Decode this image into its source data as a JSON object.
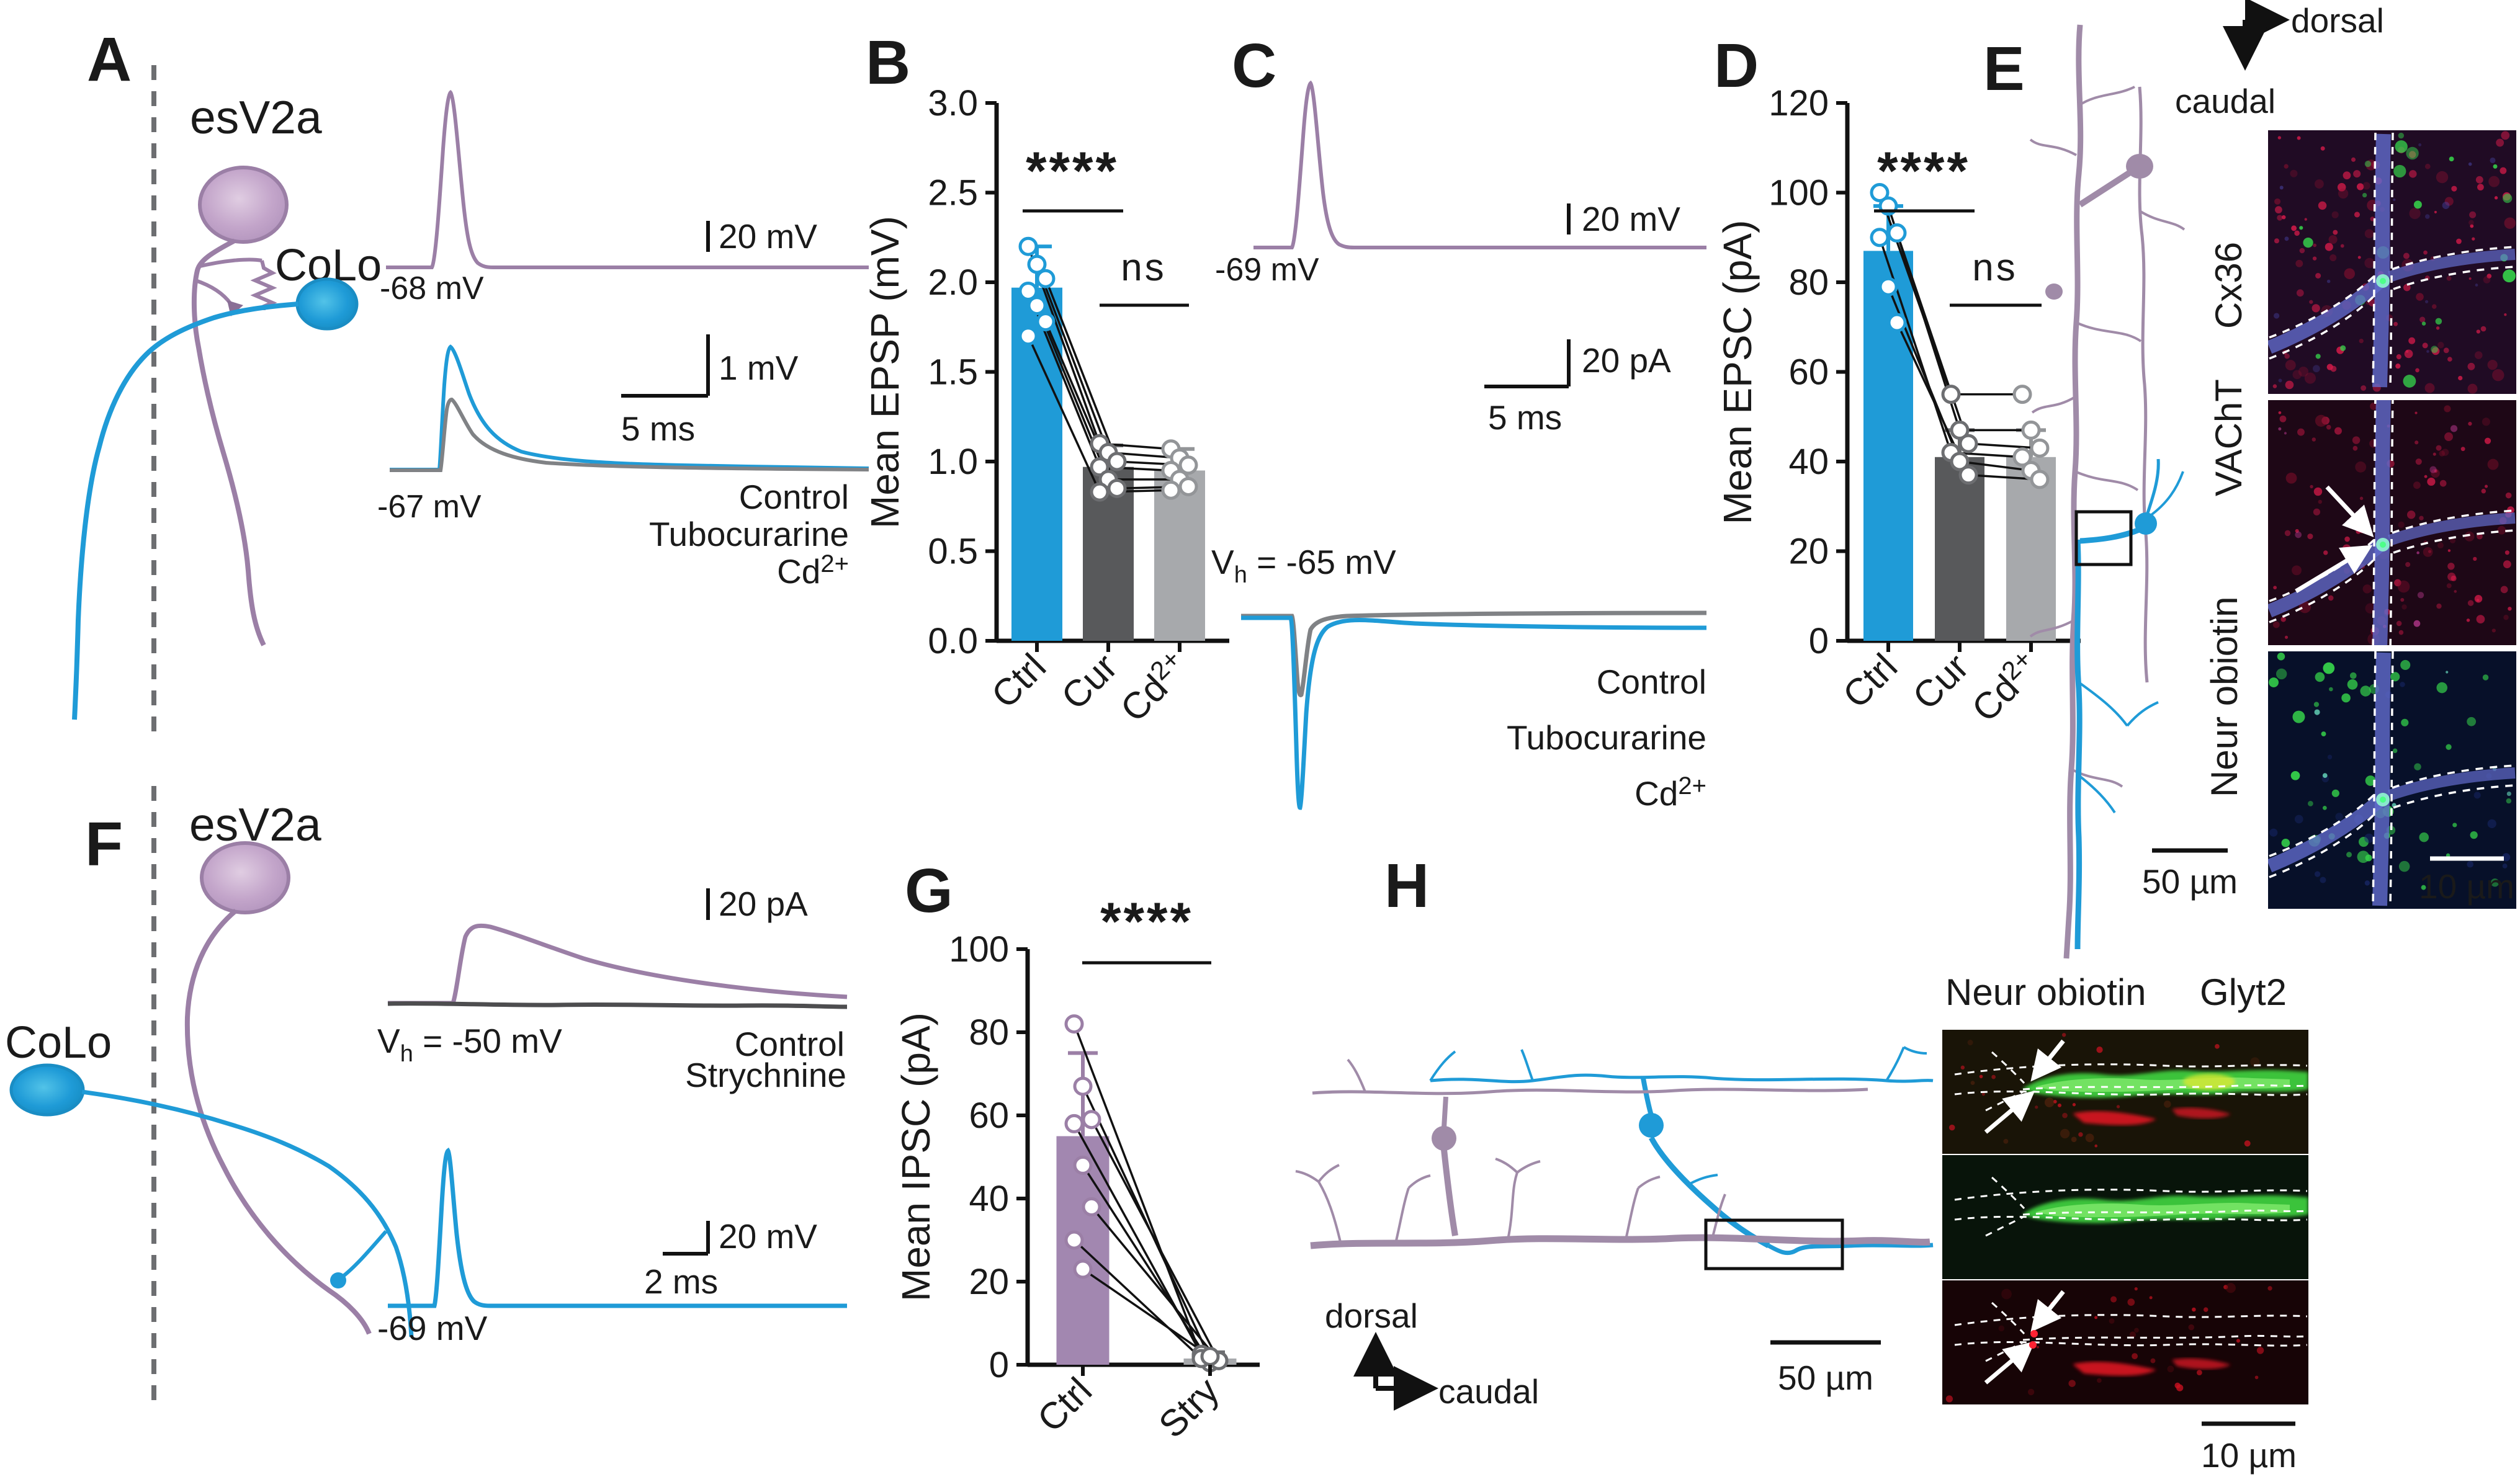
{
  "colors": {
    "blue": "#1f9bd7",
    "purple_line": "#9b7fa6",
    "purple_text": "#a98bbd",
    "purple_bar": "#a287b0",
    "dark_gray": "#58595b",
    "mid_gray": "#808285",
    "light_gray": "#a7a9ac",
    "green_label": "#0ca64a",
    "red_label": "#e8232e",
    "nb_blue_label": "#3f51b5"
  },
  "panelA": {
    "letter": "A",
    "esv2a": "esV2a",
    "colo": "CoLo",
    "trace1_baseline": "-68 mV",
    "trace1_scale": "20 mV",
    "trace2_baseline": "-67 mV",
    "scale_v": "1 mV",
    "scale_h": "5 ms",
    "legend1": "Control",
    "legend2": "Tubocurarine",
    "legend3_base": "Cd",
    "legend3_sup": "2+"
  },
  "panelB": {
    "letter": "B"
  },
  "panelC": {
    "letter": "C",
    "trace1_baseline": "-69 mV",
    "trace1_scale": "20 mV",
    "vh_v": "V",
    "vh_h": "h",
    "vh_rest": " = -65 mV",
    "scale_v": "20 pA",
    "scale_h": "5 ms",
    "legend1": "Control",
    "legend2": "Tubocurarine",
    "legend3_base": "Cd",
    "legend3_sup": "2+"
  },
  "panelD": {
    "letter": "D"
  },
  "panelE": {
    "letter": "E",
    "axis_right": "dorsal",
    "axis_down": "caudal",
    "label_red": "Cx36",
    "label_green": "VAChT",
    "label_blue": "Neur obiotin",
    "scale1": "50 µm",
    "scale2": "10 µm"
  },
  "panelF": {
    "letter": "F",
    "esv2a": "esV2a",
    "colo": "CoLo",
    "scale_top": "20 pA",
    "vh_v": "V",
    "vh_h": "h",
    "vh_rest": " = -50 mV",
    "legend1": "Control",
    "legend2": "Strychnine",
    "trace2_baseline": "-69 mV",
    "scale_v": "20 mV",
    "scale_h": "2 ms"
  },
  "panelG": {
    "letter": "G"
  },
  "panelH": {
    "letter": "H",
    "axis_up": "dorsal",
    "axis_right": "caudal",
    "scale1": "50 µm",
    "label_green": "Neur obiotin",
    "label_red": "Glyt2",
    "scale2": "10 µm"
  },
  "chart_data": [
    {
      "panel": "B",
      "type": "bar",
      "ylabel": "Mean EPSP (mV)",
      "ylim": [
        0,
        3
      ],
      "ytick_labels": [
        "0.0",
        "0.5",
        "1.0",
        "1.5",
        "2.0",
        "2.5",
        "3.0"
      ],
      "ytick_values": [
        0,
        0.5,
        1,
        1.5,
        2,
        2.5,
        3
      ],
      "categories": [
        {
          "base": "Ctrl",
          "sup": ""
        },
        {
          "base": "Cur",
          "sup": ""
        },
        {
          "base": "Cd",
          "sup": "2+"
        }
      ],
      "means": [
        1.97,
        0.97,
        0.95
      ],
      "err_top": [
        2.2,
        1.09,
        1.07
      ],
      "points": [
        [
          2.2,
          2.1,
          2.02,
          1.95,
          1.87,
          1.78,
          1.7
        ],
        [
          1.1,
          1.05,
          1.0,
          0.97,
          0.9,
          0.85,
          0.83
        ],
        [
          1.07,
          1.02,
          0.98,
          0.95,
          0.9,
          0.86,
          0.84
        ]
      ],
      "paired": true,
      "grid": false,
      "sig": [
        {
          "label": "****",
          "between": [
            0,
            1
          ]
        },
        {
          "label": "ns",
          "between": [
            1,
            2
          ]
        }
      ]
    },
    {
      "panel": "D",
      "type": "bar",
      "ylabel": "Mean EPSC (pA)",
      "ylim": [
        0,
        120
      ],
      "ytick_labels": [
        "0",
        "20",
        "40",
        "60",
        "80",
        "100",
        "120"
      ],
      "ytick_values": [
        0,
        20,
        40,
        60,
        80,
        100,
        120
      ],
      "categories": [
        {
          "base": "Ctrl",
          "sup": ""
        },
        {
          "base": "Cur",
          "sup": ""
        },
        {
          "base": "Cd",
          "sup": "2+"
        }
      ],
      "means": [
        87,
        41,
        41
      ],
      "err_top": [
        97,
        47,
        47
      ],
      "points": [
        [
          100,
          97,
          91,
          90,
          79,
          71
        ],
        [
          55,
          47,
          44,
          42,
          40,
          37
        ],
        [
          55,
          47,
          43,
          41,
          38,
          36
        ]
      ],
      "paired": true,
      "grid": false,
      "sig": [
        {
          "label": "****",
          "between": [
            0,
            1
          ]
        },
        {
          "label": "ns",
          "between": [
            1,
            2
          ]
        }
      ]
    },
    {
      "panel": "G",
      "type": "bar",
      "ylabel": "Mean IPSC (pA)",
      "ylim": [
        0,
        100
      ],
      "ytick_labels": [
        "0",
        "20",
        "40",
        "60",
        "80",
        "100"
      ],
      "ytick_values": [
        0,
        20,
        40,
        60,
        80,
        100
      ],
      "categories": [
        {
          "base": "Ctrl",
          "sup": ""
        },
        {
          "base": "Stry",
          "sup": ""
        }
      ],
      "means": [
        55,
        1.5
      ],
      "err_top": [
        75,
        3
      ],
      "points": [
        [
          82,
          67,
          59,
          58,
          48,
          38,
          30,
          23
        ],
        [
          2,
          1.5,
          1,
          2.5,
          0.5,
          1,
          1.5,
          2
        ]
      ],
      "paired": true,
      "grid": false,
      "sig": [
        {
          "label": "****",
          "between": [
            0,
            1
          ]
        }
      ]
    }
  ]
}
